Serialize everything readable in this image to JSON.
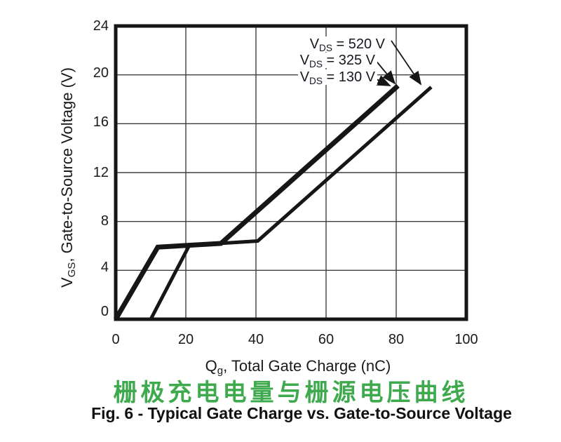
{
  "figure": {
    "caption": "Fig. 6 - Typical Gate Charge vs. Gate-to-Source Voltage",
    "caption_cn": "栅极充电电量与栅源电压曲线",
    "caption_cn_color": "#3fa94e",
    "line_color": "#161616",
    "grid_color": "#3f3f3f"
  },
  "chart_data": {
    "type": "line",
    "title": "Fig. 6 - Typical Gate Charge vs. Gate-to-Source Voltage",
    "title_cn": "栅极充电电量与栅源电压曲线",
    "xlabel": {
      "sym": "Q",
      "sub": "g",
      "rest": ", Total Gate Charge (nC)"
    },
    "ylabel": {
      "sym": "V",
      "sub": "GS",
      "rest": ", Gate-to-Source Voltage (V)"
    },
    "xlim": [
      0,
      100
    ],
    "ylim": [
      0,
      24
    ],
    "xticks": [
      0,
      20,
      40,
      60,
      80,
      100
    ],
    "yticks": [
      24,
      20,
      16,
      12,
      8,
      4,
      0
    ],
    "xtick_labels": [
      "0",
      "20",
      "40",
      "60",
      "80",
      "100"
    ],
    "ytick_labels": [
      "24",
      "20",
      "16",
      "12",
      "8",
      "4",
      "0"
    ],
    "grid": true,
    "legend_position": "arrow-annotations-top-right",
    "series": [
      {
        "name": "VDS = 325 V / VDS = 130 V (two overlapping curves, thick trace)",
        "points": [
          [
            0,
            0
          ],
          [
            12,
            5.9
          ],
          [
            30,
            6.2
          ],
          [
            80.5,
            19.1
          ]
        ],
        "stroke_width": 7
      },
      {
        "name": "VDS = 520 V (thin trace)",
        "points": [
          [
            10,
            0
          ],
          [
            21,
            6.05
          ],
          [
            40.5,
            6.4
          ],
          [
            90,
            19
          ]
        ],
        "stroke_width": 5
      }
    ],
    "annotations": [
      {
        "sym": "V",
        "sub": "DS",
        "rest": " = 520 V"
      },
      {
        "sym": "V",
        "sub": "DS",
        "rest": " = 325 V"
      },
      {
        "sym": "V",
        "sub": "DS",
        "rest": " = 130 V"
      }
    ]
  }
}
